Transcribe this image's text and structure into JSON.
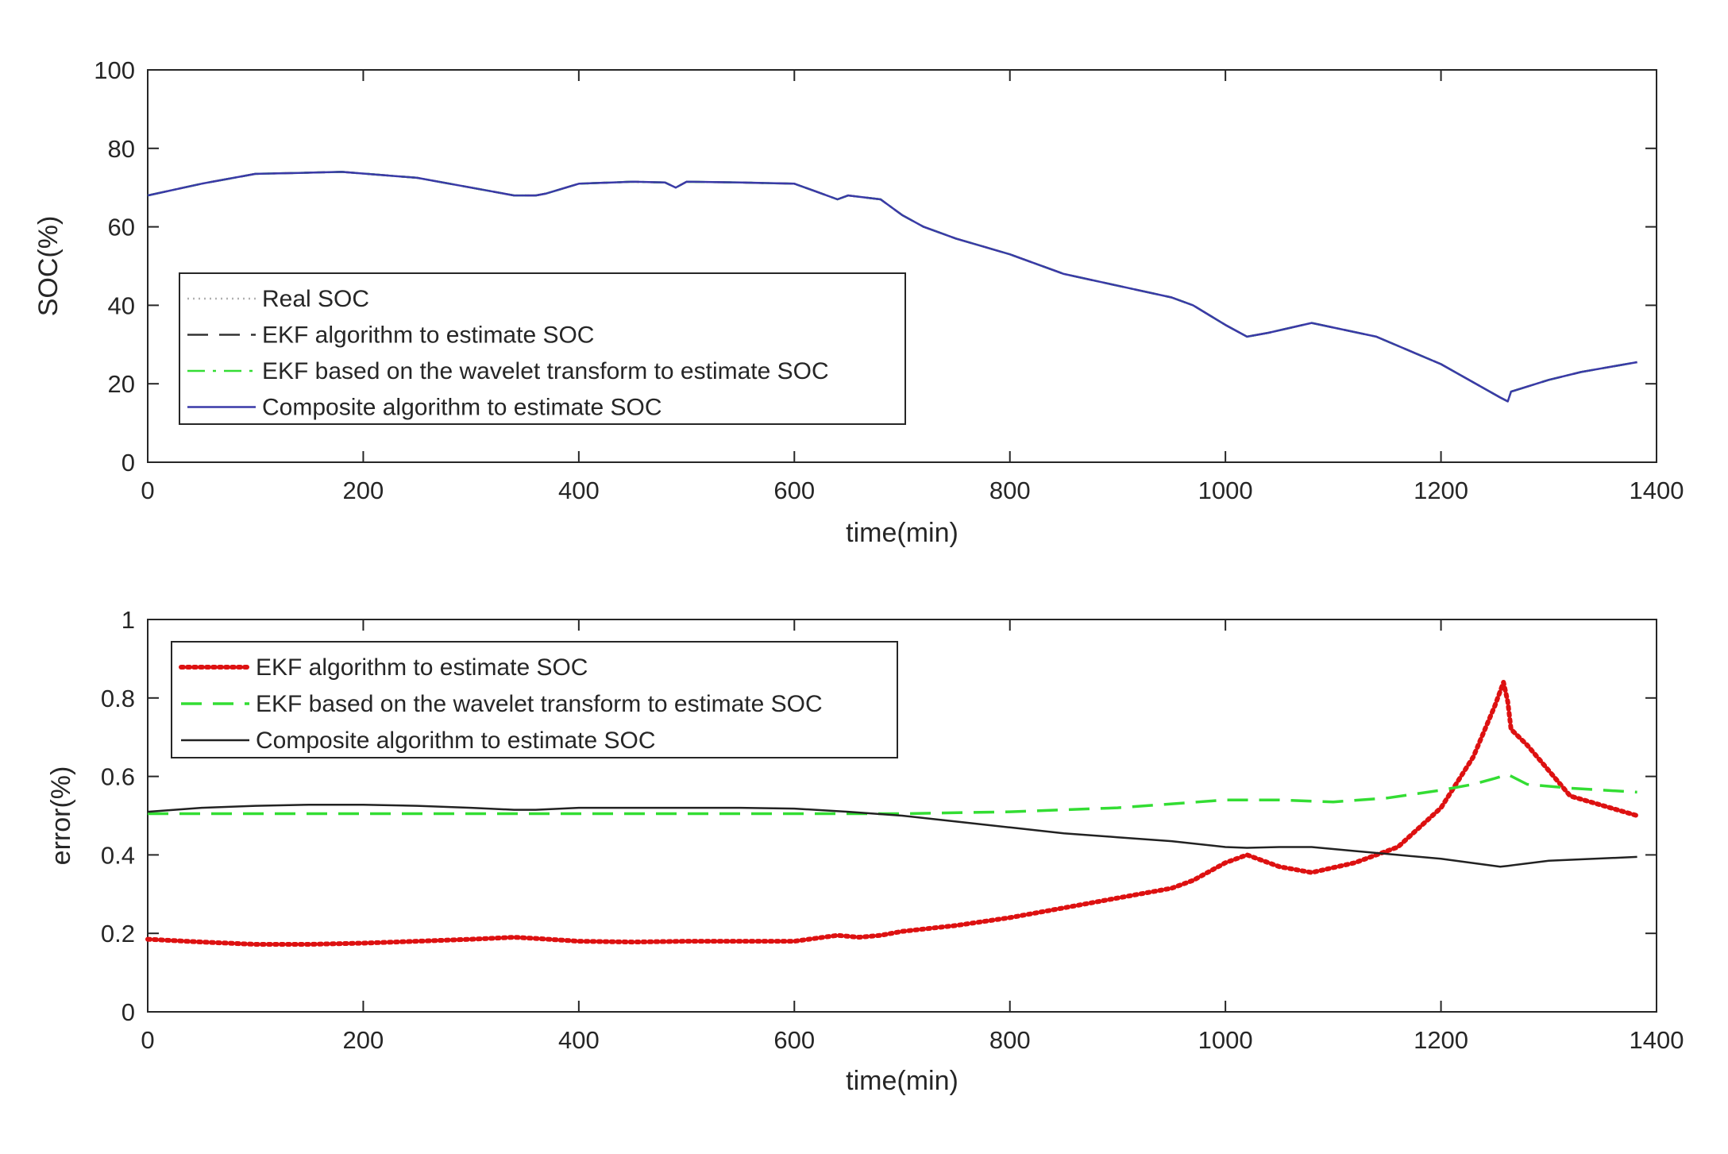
{
  "chart_data": [
    {
      "type": "line",
      "title": "",
      "xlabel": "time(min)",
      "ylabel": "SOC(%)",
      "xlim": [
        0,
        1400
      ],
      "ylim": [
        0,
        100
      ],
      "xticks": [
        0,
        200,
        400,
        600,
        800,
        1000,
        1200,
        1400
      ],
      "yticks": [
        0,
        20,
        40,
        60,
        80,
        100
      ],
      "legend_position": "middle-left",
      "series": [
        {
          "name": "Real SOC",
          "style": "dotted",
          "color": "#b0b0b0",
          "x": [
            0,
            50,
            100,
            150,
            180,
            250,
            300,
            340,
            360,
            370,
            400,
            450,
            480,
            490,
            500,
            550,
            600,
            620,
            640,
            650,
            680,
            700,
            720,
            750,
            800,
            850,
            900,
            950,
            970,
            1000,
            1020,
            1040,
            1080,
            1140,
            1200,
            1255,
            1262,
            1265,
            1300,
            1330,
            1382
          ],
          "y": [
            68,
            71,
            73.5,
            73.8,
            74,
            72.5,
            70,
            68,
            68,
            68.5,
            71,
            71.5,
            71.3,
            70,
            71.5,
            71.3,
            71,
            69,
            67,
            68,
            67,
            63,
            60,
            57,
            53,
            48,
            45,
            42,
            40,
            35,
            32,
            33,
            35.5,
            32,
            25,
            16.5,
            15.5,
            18,
            21,
            23,
            25.5
          ]
        },
        {
          "name": "EKF algorithm to estimate SOC",
          "style": "dashed",
          "color": "#333333",
          "x": [
            0,
            50,
            100,
            150,
            180,
            250,
            300,
            340,
            360,
            370,
            400,
            450,
            480,
            490,
            500,
            550,
            600,
            620,
            640,
            650,
            680,
            700,
            720,
            750,
            800,
            850,
            900,
            950,
            970,
            1000,
            1020,
            1040,
            1080,
            1140,
            1200,
            1255,
            1262,
            1265,
            1300,
            1330,
            1382
          ],
          "y": [
            68,
            71,
            73.5,
            73.8,
            74,
            72.5,
            70,
            68,
            68,
            68.5,
            71,
            71.5,
            71.3,
            70,
            71.5,
            71.3,
            71,
            69,
            67,
            68,
            67,
            63,
            60,
            57,
            53,
            48,
            45,
            42,
            40,
            35,
            32,
            33,
            35.5,
            32,
            25,
            16.5,
            15.5,
            18,
            21,
            23,
            25.5
          ]
        },
        {
          "name": "EKF based on the wavelet transform to estimate SOC",
          "style": "dashdot",
          "color": "#33dd33",
          "x": [
            0,
            50,
            100,
            150,
            180,
            250,
            300,
            340,
            360,
            370,
            400,
            450,
            480,
            490,
            500,
            550,
            600,
            620,
            640,
            650,
            680,
            700,
            720,
            750,
            800,
            850,
            900,
            950,
            970,
            1000,
            1020,
            1040,
            1080,
            1140,
            1200,
            1255,
            1262,
            1265,
            1300,
            1330,
            1382
          ],
          "y": [
            68,
            71,
            73.5,
            73.8,
            74,
            72.5,
            70,
            68,
            68,
            68.5,
            71,
            71.5,
            71.3,
            70,
            71.5,
            71.3,
            71,
            69,
            67,
            68,
            67,
            63,
            60,
            57,
            53,
            48,
            45,
            42,
            40,
            35,
            32,
            33,
            35.5,
            32,
            25,
            16.5,
            15.5,
            18,
            21,
            23,
            25.5
          ]
        },
        {
          "name": "Composite algorithm to estimate SOC",
          "style": "solid",
          "color": "#3a3aa8",
          "x": [
            0,
            50,
            100,
            150,
            180,
            250,
            300,
            340,
            360,
            370,
            400,
            450,
            480,
            490,
            500,
            550,
            600,
            620,
            640,
            650,
            680,
            700,
            720,
            750,
            800,
            850,
            900,
            950,
            970,
            1000,
            1020,
            1040,
            1080,
            1140,
            1200,
            1255,
            1262,
            1265,
            1300,
            1330,
            1382
          ],
          "y": [
            68,
            71,
            73.5,
            73.8,
            74,
            72.5,
            70,
            68,
            68,
            68.5,
            71,
            71.5,
            71.3,
            70,
            71.5,
            71.3,
            71,
            69,
            67,
            68,
            67,
            63,
            60,
            57,
            53,
            48,
            45,
            42,
            40,
            35,
            32,
            33,
            35.5,
            32,
            25,
            16.5,
            15.5,
            18,
            21,
            23,
            25.5
          ]
        }
      ]
    },
    {
      "type": "line",
      "title": "",
      "xlabel": "time(min)",
      "ylabel": "error(%)",
      "xlim": [
        0,
        1400
      ],
      "ylim": [
        0,
        1
      ],
      "xticks": [
        0,
        200,
        400,
        600,
        800,
        1000,
        1200,
        1400
      ],
      "yticks": [
        0,
        0.2,
        0.4,
        0.6,
        0.8,
        1
      ],
      "legend_position": "top-left",
      "series": [
        {
          "name": "EKF algorithm to estimate SOC",
          "style": "dotted",
          "color": "#dd1111",
          "x": [
            0,
            50,
            100,
            150,
            200,
            250,
            300,
            340,
            360,
            400,
            450,
            500,
            550,
            600,
            640,
            660,
            680,
            700,
            750,
            800,
            850,
            900,
            950,
            970,
            1000,
            1020,
            1050,
            1080,
            1120,
            1160,
            1200,
            1230,
            1250,
            1258,
            1262,
            1265,
            1280,
            1320,
            1382
          ],
          "y": [
            0.185,
            0.178,
            0.172,
            0.172,
            0.175,
            0.18,
            0.185,
            0.19,
            0.187,
            0.18,
            0.178,
            0.18,
            0.18,
            0.18,
            0.195,
            0.19,
            0.195,
            0.205,
            0.22,
            0.24,
            0.265,
            0.29,
            0.315,
            0.335,
            0.38,
            0.4,
            0.37,
            0.355,
            0.38,
            0.42,
            0.52,
            0.65,
            0.78,
            0.84,
            0.79,
            0.72,
            0.68,
            0.55,
            0.5
          ]
        },
        {
          "name": "EKF based on the wavelet transform to estimate SOC",
          "style": "dashed",
          "color": "#33dd33",
          "x": [
            0,
            100,
            200,
            300,
            400,
            500,
            600,
            700,
            800,
            900,
            1000,
            1050,
            1100,
            1150,
            1200,
            1230,
            1250,
            1262,
            1280,
            1320,
            1382
          ],
          "y": [
            0.505,
            0.505,
            0.505,
            0.505,
            0.505,
            0.505,
            0.505,
            0.505,
            0.51,
            0.52,
            0.54,
            0.54,
            0.535,
            0.545,
            0.565,
            0.58,
            0.595,
            0.605,
            0.58,
            0.57,
            0.56
          ]
        },
        {
          "name": "Composite algorithm to estimate SOC",
          "style": "solid",
          "color": "#222222",
          "x": [
            0,
            50,
            100,
            150,
            200,
            250,
            300,
            340,
            360,
            400,
            450,
            500,
            550,
            600,
            650,
            700,
            750,
            800,
            850,
            900,
            950,
            1000,
            1020,
            1050,
            1080,
            1120,
            1160,
            1200,
            1255,
            1262,
            1300,
            1382
          ],
          "y": [
            0.51,
            0.52,
            0.525,
            0.528,
            0.528,
            0.525,
            0.52,
            0.515,
            0.515,
            0.52,
            0.52,
            0.52,
            0.52,
            0.518,
            0.51,
            0.5,
            0.485,
            0.47,
            0.455,
            0.445,
            0.435,
            0.42,
            0.418,
            0.42,
            0.42,
            0.41,
            0.4,
            0.39,
            0.37,
            0.372,
            0.385,
            0.395
          ]
        }
      ]
    }
  ]
}
